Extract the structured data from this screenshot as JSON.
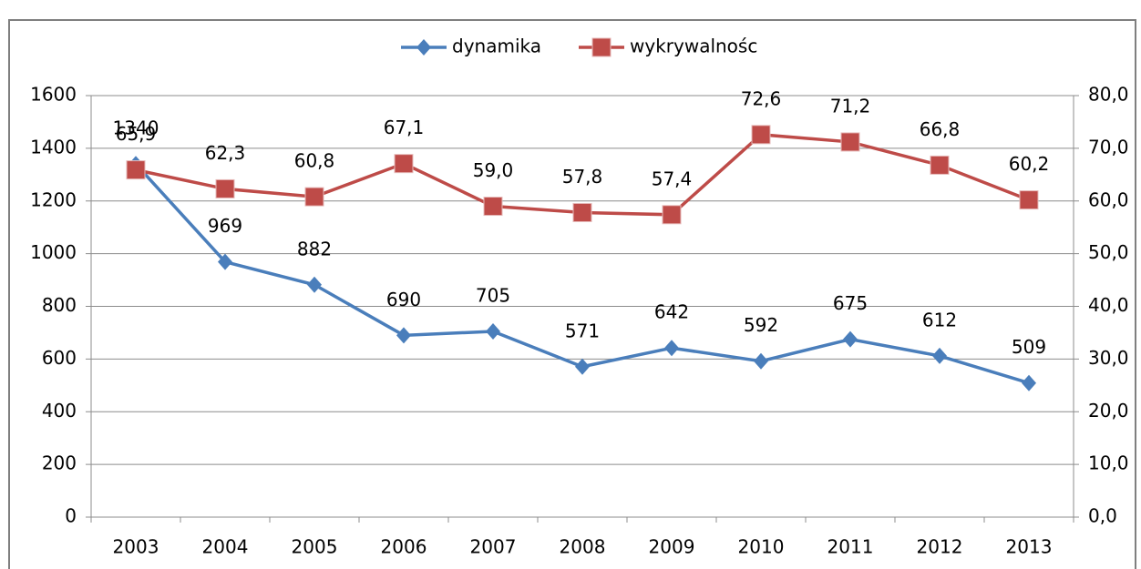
{
  "chart_data": {
    "type": "line",
    "categories": [
      "2003",
      "2004",
      "2005",
      "2006",
      "2007",
      "2008",
      "2009",
      "2010",
      "2011",
      "2012",
      "2013"
    ],
    "series": [
      {
        "name": "dynamika",
        "color": "#4a7ebb",
        "marker": "diamond",
        "values": [
          1340,
          969,
          882,
          690,
          705,
          571,
          642,
          592,
          675,
          612,
          509
        ]
      },
      {
        "name": "wykrywalnośc",
        "color": "#be4b48",
        "marker": "square",
        "axis": "y2",
        "values": [
          65.9,
          62.3,
          60.8,
          67.1,
          59.0,
          57.8,
          57.4,
          72.6,
          71.2,
          66.8,
          60.2
        ],
        "value_labels": [
          "65,9",
          "62,3",
          "60,8",
          "67,1",
          "59,0",
          "57,8",
          "57,4",
          "72,6",
          "71,2",
          "66,8",
          "60,2"
        ]
      }
    ],
    "ylim": [
      0,
      1600
    ],
    "yticks": [
      0,
      200,
      400,
      600,
      800,
      1000,
      1200,
      1400,
      1600
    ],
    "y2lim": [
      0,
      80
    ],
    "y2ticks": [
      {
        "value": 0,
        "label": "0,0"
      },
      {
        "value": 10,
        "label": "10,0"
      },
      {
        "value": 20,
        "label": "20,0"
      },
      {
        "value": 30,
        "label": "30,0"
      },
      {
        "value": 40,
        "label": "40,0"
      },
      {
        "value": 50,
        "label": "50,0"
      },
      {
        "value": 60,
        "label": "60,0"
      },
      {
        "value": 70,
        "label": "70,0"
      },
      {
        "value": 80,
        "label": "80,0"
      }
    ],
    "grid": true,
    "legend": "top"
  }
}
